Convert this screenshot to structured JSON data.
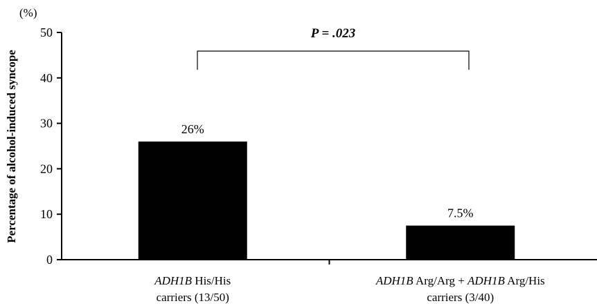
{
  "chart_data": {
    "type": "bar",
    "categories": [
      {
        "gene": "ADH1B",
        "rest": " His/His",
        "line2": "carriers (13/50)"
      },
      {
        "gene": "ADH1B",
        "mid": " Arg/Arg + ",
        "gene2": "ADH1B",
        "rest": " Arg/His",
        "line2": "carriers (3/40)"
      }
    ],
    "values": [
      26,
      7.5
    ],
    "value_labels": [
      "26%",
      "7.5%"
    ],
    "ylabel": "Percentage of alcohol-induced syncope",
    "yunit": "(%)",
    "ylim": [
      0,
      50
    ],
    "yticks": [
      0,
      10,
      20,
      30,
      40,
      50
    ],
    "annotation": {
      "p": "P",
      "rest": " = .023"
    },
    "bar_color": "#000000",
    "grid": false,
    "legend": "none"
  }
}
